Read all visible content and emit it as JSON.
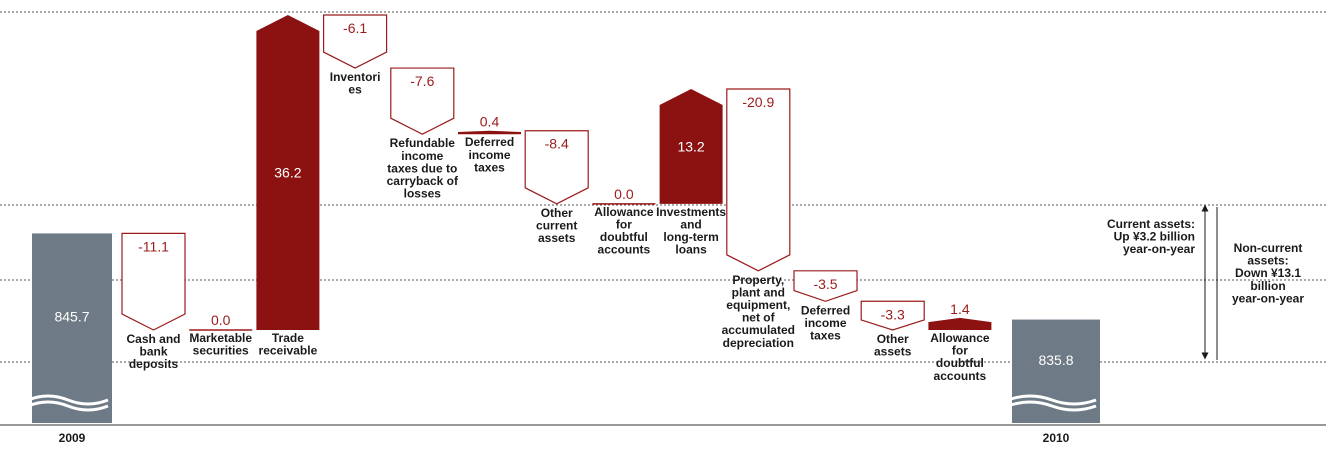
{
  "chart_data": {
    "type": "waterfall",
    "start": {
      "label": "2009",
      "value": 845.7
    },
    "end": {
      "label": "2010",
      "value": 835.8
    },
    "categories": [
      "Cash and\nbank\ndeposits",
      "Marketable\nsecurities",
      "Trade\nreceivable",
      "Inventori\nes",
      "Refundable\nincome\ntaxes due to\ncarryback of\nlosses",
      "Deferred\nincome\ntaxes",
      "Other\ncurrent\nassets",
      "Allowance\nfor\ndoubtful\naccounts",
      "Investments\nand\nlong-term\nloans",
      "Property,\nplant and\nequipment,\nnet of\naccumulated\ndepreciation",
      "Deferred\nincome\ntaxes",
      "Other\nassets",
      "Allowance\nfor\ndoubtful\naccounts"
    ],
    "values": [
      -11.1,
      0.0,
      36.2,
      -6.1,
      -7.6,
      0.4,
      -8.4,
      0.0,
      13.2,
      -20.9,
      -3.5,
      -3.3,
      1.4
    ],
    "value_labels": [
      "-11.1",
      "0.0",
      "36.2",
      "-6.1",
      "-7.6",
      "0.4",
      "-8.4",
      "0.0",
      "13.2",
      "-20.9",
      "-3.5",
      "-3.3",
      "1.4"
    ],
    "colors": {
      "total": "#6e7b86",
      "increase": "#8c1212",
      "decrease": "#9b1b1b"
    },
    "annotations": [
      "Current assets:\nUp ¥3.2 billion\nyear-on-year",
      "Non-current\nassets:\nDown ¥13.1\nbillion\nyear-on-year"
    ]
  }
}
